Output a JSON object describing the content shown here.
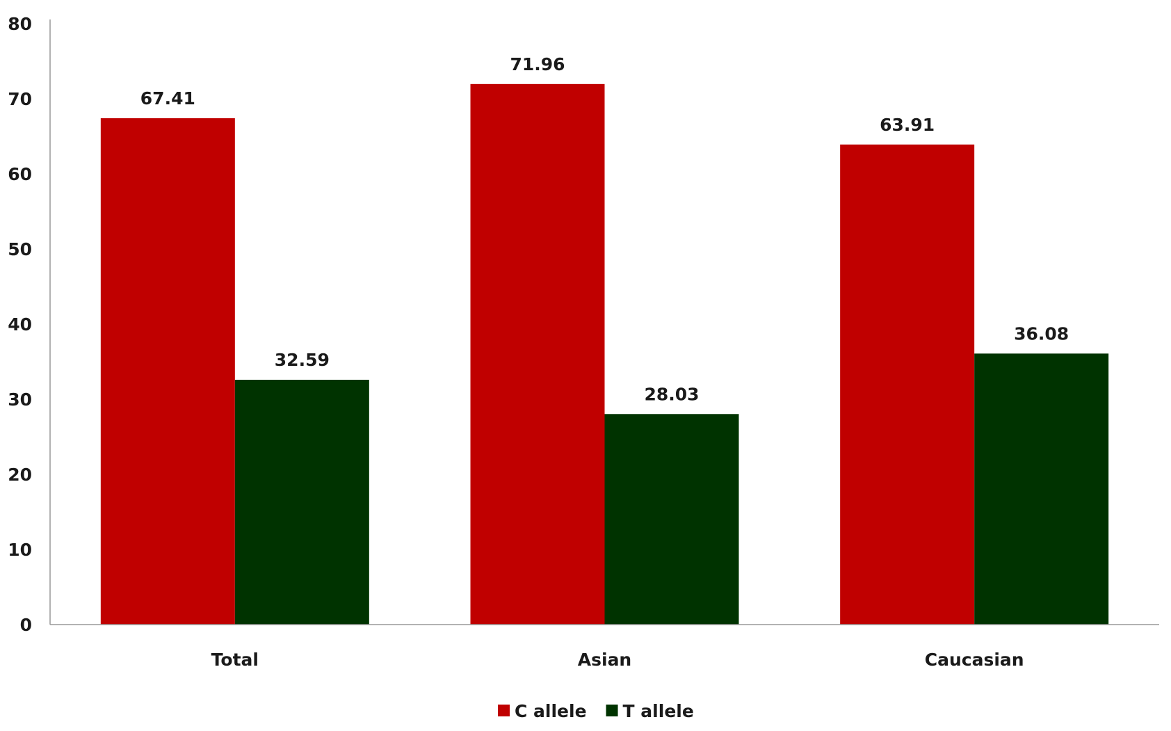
{
  "chart_data": {
    "type": "bar",
    "title": "",
    "xlabel": "",
    "ylabel": "",
    "categories": [
      "Total",
      "Asian",
      "Caucasian"
    ],
    "series": [
      {
        "name": "C allele",
        "color": "#c00000",
        "values": [
          67.41,
          71.96,
          63.91
        ],
        "labels": [
          "67.41",
          "71.96",
          "63.91"
        ]
      },
      {
        "name": "T allele",
        "color": "#003300",
        "values": [
          32.59,
          28.03,
          36.08
        ],
        "labels": [
          "32.59",
          "28.03",
          "36.08"
        ]
      }
    ],
    "ylim": [
      0,
      80
    ],
    "yticks": [
      "0",
      "10",
      "20",
      "30",
      "40",
      "50",
      "60",
      "70",
      "80"
    ],
    "grid": false,
    "legend": "bottom"
  }
}
